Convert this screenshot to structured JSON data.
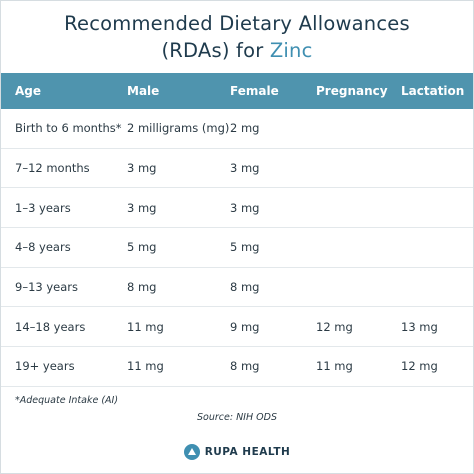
{
  "title": {
    "line1": "Recommended Dietary Allowances",
    "line2": "(RDAs) for",
    "highlight": "Zinc"
  },
  "table": {
    "header": [
      "Age",
      "Male",
      "Female",
      "Pregnancy",
      "Lactation"
    ],
    "rows": [
      [
        "Birth to 6 months*",
        "2 milligrams (mg)",
        "2 mg",
        null,
        null
      ],
      [
        "7–12 months",
        "3 mg",
        "3 mg",
        null,
        null
      ],
      [
        "1–3 years",
        "3 mg",
        "3 mg",
        null,
        null
      ],
      [
        "4–8 years",
        "5 mg",
        "5 mg",
        null,
        null
      ],
      [
        "9–13 years",
        "8 mg",
        "8 mg",
        null,
        null
      ],
      [
        "14–18 years",
        "11 mg",
        "9 mg",
        "12 mg",
        "13 mg"
      ],
      [
        "19+ years",
        "11 mg",
        "8 mg",
        "11 mg",
        "12 mg"
      ]
    ]
  },
  "footnote": "*Adequate Intake (AI)",
  "source": "Source: NIH ODS",
  "brand": "RUPA HEALTH"
}
